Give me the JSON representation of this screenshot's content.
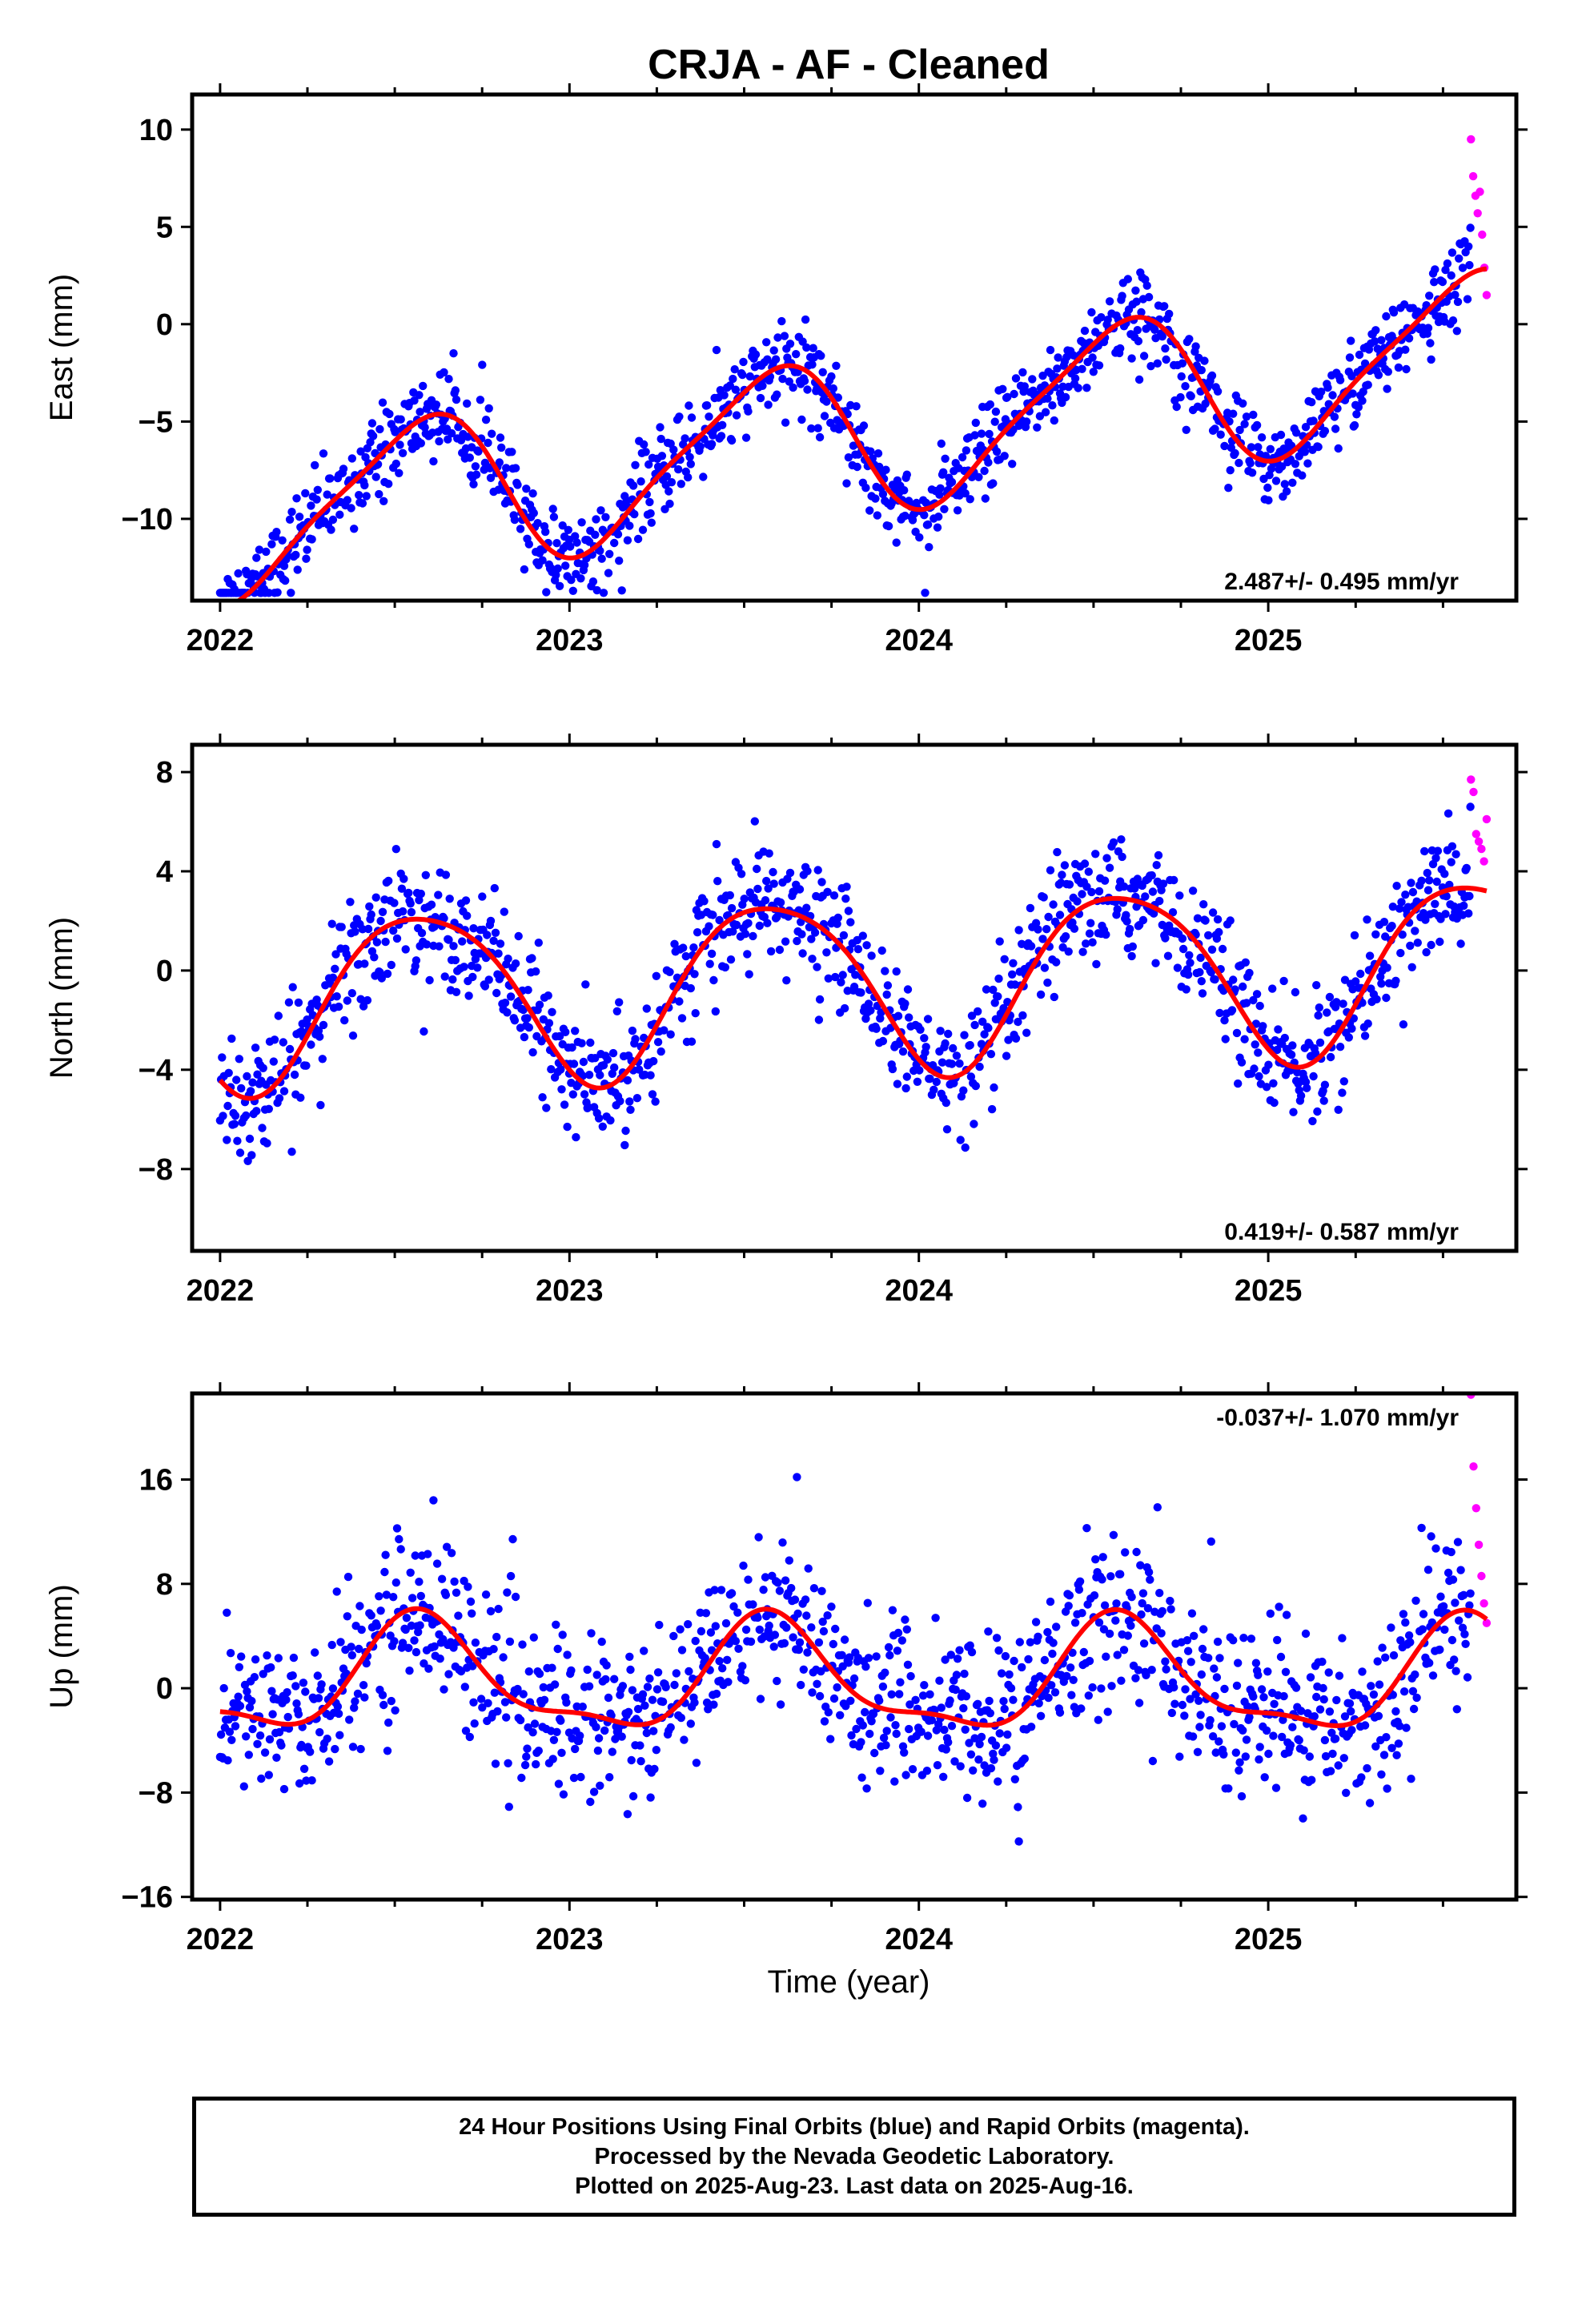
{
  "title": "CRJA  - AF - Cleaned",
  "xlabel": "Time (year)",
  "footer": {
    "line1": "24 Hour Positions Using Final Orbits (blue) and Rapid Orbits (magenta).",
    "line2": "Processed by the Nevada Geodetic Laboratory.",
    "line3": "Plotted on 2025-Aug-23. Last data on 2025-Aug-16."
  },
  "colors": {
    "final": "#0000ff",
    "rapid": "#ff00ff",
    "fit": "#ff0000",
    "frame": "#000000"
  },
  "chart_data": [
    {
      "type": "scatter",
      "ylabel": "East (mm)",
      "rate": "2.487+/- 0.495 mm/yr",
      "rate_position": "bottom-right",
      "xlim": [
        2021.92,
        2025.71
      ],
      "ylim": [
        -14.2,
        11.8
      ],
      "xticks": [
        2022,
        2023,
        2024,
        2025
      ],
      "yticks": [
        -10,
        -5,
        0,
        5,
        10
      ],
      "yticklabels": [
        "−10",
        "−5",
        "0",
        "5",
        "10"
      ],
      "x_start": 2022.0,
      "x_end_final": 2025.58,
      "x_end_rapid": 2025.625,
      "fit": {
        "offset": -5.77,
        "rate": 2.487,
        "ann_amplitude": 3.9,
        "ann_peak": 2022.56,
        "semi_amplitude": 0.8,
        "semi_peak": 2022.2
      },
      "scatter_sd": 1.1,
      "rapid_values": [
        9.5,
        7.6,
        6.6,
        5.7,
        6.8,
        4.6,
        2.9,
        1.5
      ],
      "y_range_min": -13.8,
      "y_range_max": 11.3,
      "series": [
        {
          "name": "Final Orbits",
          "color": "blue"
        },
        {
          "name": "Rapid Orbits",
          "color": "magenta"
        },
        {
          "name": "Model fit",
          "color": "red"
        }
      ]
    },
    {
      "type": "scatter",
      "ylabel": "North (mm)",
      "rate": "0.419+/- 0.587 mm/yr",
      "rate_position": "bottom-right",
      "xlim": [
        2021.92,
        2025.71
      ],
      "ylim": [
        -11.3,
        9.1
      ],
      "xticks": [
        2022,
        2023,
        2024,
        2025
      ],
      "yticks": [
        -8,
        -4,
        0,
        4,
        8
      ],
      "yticklabels": [
        "−8",
        "−4",
        "0",
        "4",
        "8"
      ],
      "x_start": 2022.0,
      "x_end_final": 2025.58,
      "x_end_rapid": 2025.625,
      "fit": {
        "offset": -0.45,
        "rate": 0.419,
        "ann_amplitude": 3.5,
        "ann_peak": 2022.58,
        "semi_amplitude": 0.5,
        "semi_peak": 2022.35
      },
      "scatter_sd": 1.2,
      "rapid_values": [
        7.7,
        7.2,
        5.5,
        5.2,
        4.9,
        4.4,
        6.1
      ],
      "y_range_min": -11.0,
      "y_range_max": 8.6,
      "series": [
        {
          "name": "Final Orbits",
          "color": "blue"
        },
        {
          "name": "Rapid Orbits",
          "color": "magenta"
        },
        {
          "name": "Model fit",
          "color": "red"
        }
      ]
    },
    {
      "type": "scatter",
      "ylabel": "Up (mm)",
      "rate": "-0.037+/- 1.070 mm/yr",
      "rate_position": "top-right",
      "xlim": [
        2021.92,
        2025.71
      ],
      "ylim": [
        -16.2,
        22.6
      ],
      "xticks": [
        2022,
        2023,
        2024,
        2025
      ],
      "yticks": [
        -16,
        -8,
        0,
        8,
        16
      ],
      "yticklabels": [
        "−16",
        "−8",
        "0",
        "8",
        "16"
      ],
      "x_start": 2022.0,
      "x_end_final": 2025.58,
      "x_end_rapid": 2025.625,
      "fit": {
        "offset": 0.6,
        "rate": -0.037,
        "ann_amplitude": 4.1,
        "ann_peak": 2022.58,
        "semi_amplitude": 1.4,
        "semi_peak": 2022.55
      },
      "scatter_sd": 3.2,
      "rapid_values": [
        22.5,
        17.0,
        13.8,
        11.0,
        8.6,
        6.5,
        5.0
      ],
      "y_range_min": -15.5,
      "y_range_max": 18.5,
      "series": [
        {
          "name": "Final Orbits",
          "color": "blue"
        },
        {
          "name": "Rapid Orbits",
          "color": "magenta"
        },
        {
          "name": "Model fit",
          "color": "red"
        }
      ]
    }
  ]
}
